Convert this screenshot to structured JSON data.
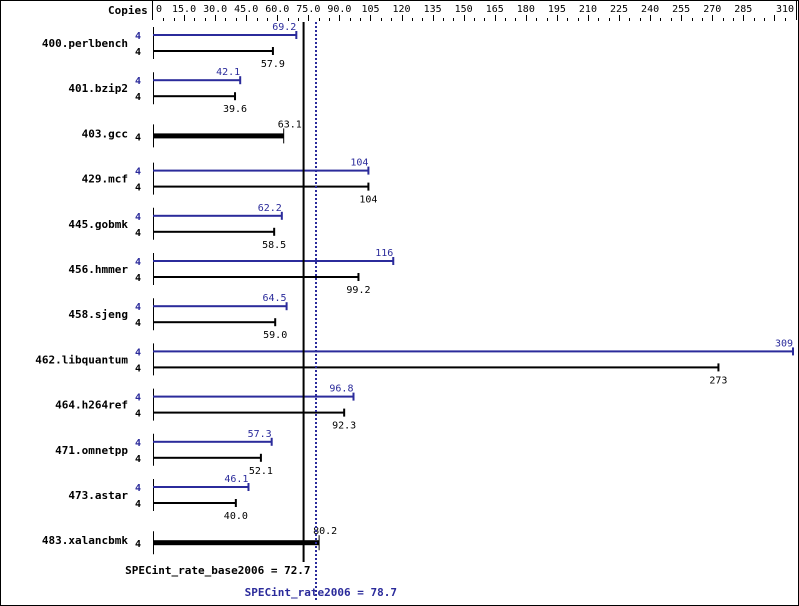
{
  "chart_data": {
    "type": "bar",
    "orientation": "horizontal",
    "title": "",
    "xlabel": "",
    "header_label": "Copies",
    "xlim": [
      0,
      310
    ],
    "tick_labels": [
      "0",
      "15.0",
      "30.0",
      "45.0",
      "60.0",
      "75.0",
      "90.0",
      "105",
      "120",
      "135",
      "150",
      "165",
      "180",
      "195",
      "210",
      "225",
      "240",
      "255",
      "270",
      "285",
      "310"
    ],
    "tick_values": [
      0,
      15,
      30,
      45,
      60,
      75,
      90,
      105,
      120,
      135,
      150,
      165,
      180,
      195,
      210,
      225,
      240,
      255,
      270,
      285,
      310
    ],
    "minor_tick_step": 5,
    "categories": [
      "400.perlbench",
      "401.bzip2",
      "403.gcc",
      "429.mcf",
      "445.gobmk",
      "456.hmmer",
      "458.sjeng",
      "462.libquantum",
      "464.h264ref",
      "471.omnetpp",
      "473.astar",
      "483.xalancbmk"
    ],
    "series": [
      {
        "name": "SPECint_rate2006 (peak)",
        "color": "#2b2b9b",
        "copies": [
          4,
          4,
          null,
          4,
          4,
          4,
          4,
          4,
          4,
          4,
          4,
          null
        ],
        "values": [
          69.2,
          42.1,
          null,
          104,
          62.2,
          116,
          64.5,
          309,
          96.8,
          57.3,
          46.1,
          null
        ]
      },
      {
        "name": "SPECint_rate_base2006 (base)",
        "color": "#000000",
        "copies": [
          4,
          4,
          4,
          4,
          4,
          4,
          4,
          4,
          4,
          4,
          4,
          4
        ],
        "values": [
          57.9,
          39.6,
          63.1,
          104,
          58.5,
          99.2,
          59.0,
          273,
          92.3,
          52.1,
          40.0,
          80.2
        ]
      }
    ],
    "value_labels_peak": [
      "69.2",
      "42.1",
      "",
      "104",
      "62.2",
      "116",
      "64.5",
      "309",
      "96.8",
      "57.3",
      "46.1",
      ""
    ],
    "value_labels_base": [
      "57.9",
      "39.6",
      "63.1",
      "104",
      "58.5",
      "99.2",
      "59.0",
      "273",
      "92.3",
      "52.1",
      "40.0",
      "80.2"
    ],
    "reference_lines": [
      {
        "name": "SPECint_rate_base2006",
        "value": 72.7,
        "label": "SPECint_rate_base2006 = 72.7",
        "style": "solid",
        "color": "#000000"
      },
      {
        "name": "SPECint_rate2006",
        "value": 78.7,
        "label": "SPECint_rate2006 = 78.7",
        "style": "dotted",
        "color": "#2b2b9b"
      }
    ],
    "grid": false,
    "legend": null
  }
}
